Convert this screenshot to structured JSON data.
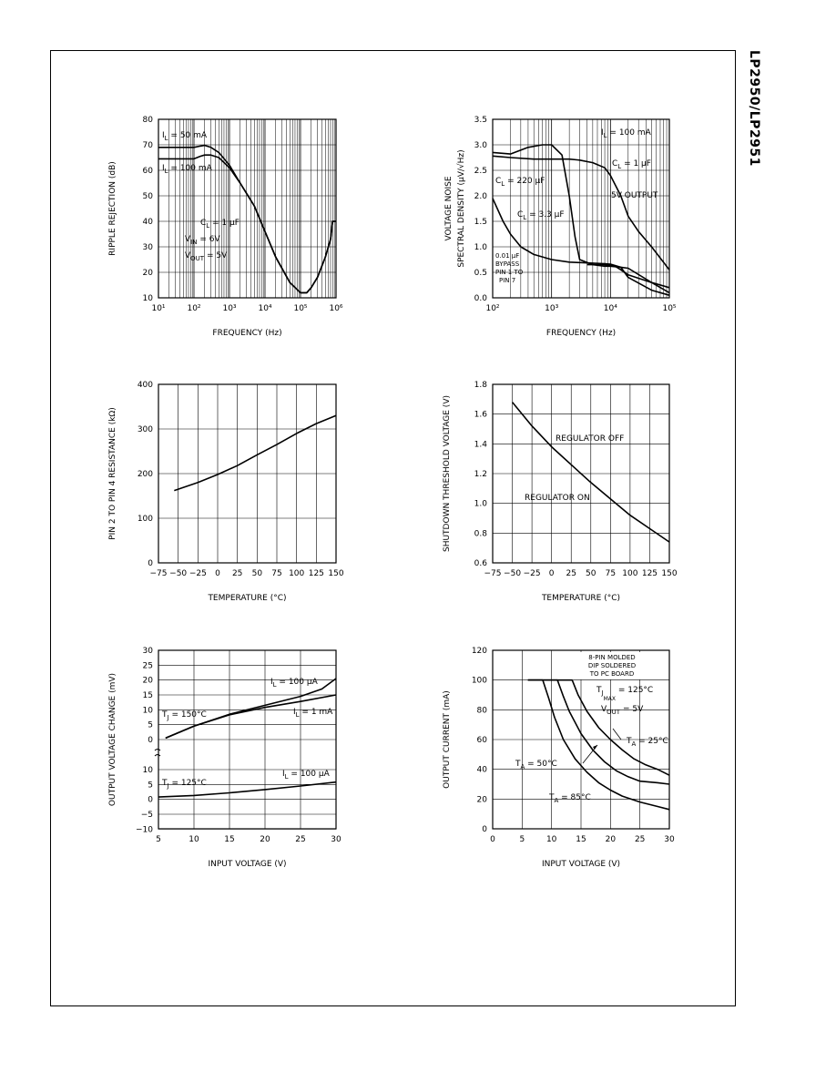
{
  "page": {
    "side_label": "LP2950/LP2951"
  },
  "chart_data": [
    {
      "id": "ripple",
      "type": "line",
      "xscale": "log",
      "xlim": [
        10,
        1000000
      ],
      "ylim": [
        10,
        80
      ],
      "xticks": [
        10,
        100,
        1000,
        10000,
        100000,
        1000000
      ],
      "xtick_labels": [
        "10¹",
        "10²",
        "10³",
        "10⁴",
        "10⁵",
        "10⁶"
      ],
      "yticks": [
        10,
        20,
        30,
        40,
        50,
        60,
        70,
        80
      ],
      "ytick_labels": [
        "10",
        "20",
        "30",
        "40",
        "50",
        "60",
        "70",
        "80"
      ],
      "grid": true,
      "xlabel": "FREQUENCY (Hz)",
      "ylabel": "RIPPLE REJECTION (dB)",
      "series": [
        {
          "name": "I_L = 50 mA",
          "x": [
            10,
            50,
            100,
            150,
            200,
            300,
            500,
            1000,
            2000,
            5000,
            10000,
            20000,
            50000,
            100000,
            150000,
            200000,
            300000,
            500000,
            700000,
            800000,
            1000000
          ],
          "y": [
            69,
            69,
            69,
            69.5,
            69.8,
            69,
            67,
            62,
            55,
            46,
            36,
            26,
            16,
            12,
            12,
            14,
            18,
            26,
            33,
            40,
            40
          ]
        },
        {
          "name": "I_L = 100 mA",
          "x": [
            10,
            50,
            100,
            150,
            200,
            300,
            500,
            1000,
            2000,
            5000,
            10000,
            20000,
            50000,
            100000,
            150000,
            200000,
            300000,
            500000,
            700000,
            800000,
            1000000
          ],
          "y": [
            64.5,
            64.5,
            64.5,
            65.5,
            66,
            66,
            65,
            61,
            55,
            46,
            36,
            26,
            16,
            12,
            12,
            14,
            18,
            26,
            33,
            40,
            40
          ]
        }
      ],
      "annotations": [
        {
          "text": "I",
          "sub": "L",
          "rest": " = 50 mA"
        },
        {
          "text": "I",
          "sub": "L",
          "rest": " = 100 mA"
        },
        {
          "text": "C",
          "sub": "L",
          "rest": " = 1 μF"
        },
        {
          "text": "V",
          "sub": "IN",
          "rest": " = 6V"
        },
        {
          "text": "V",
          "sub": "OUT",
          "rest": " = 5V"
        }
      ]
    },
    {
      "id": "noise",
      "type": "line",
      "xscale": "log",
      "xlim": [
        100,
        100000
      ],
      "ylim": [
        0,
        3.5
      ],
      "xticks": [
        100,
        1000,
        10000,
        100000
      ],
      "xtick_labels": [
        "10²",
        "10³",
        "10⁴",
        "10⁵"
      ],
      "yticks": [
        0,
        0.5,
        1.0,
        1.5,
        2.0,
        2.5,
        3.0,
        3.5
      ],
      "ytick_labels": [
        "0.0",
        "0.5",
        "1.0",
        "1.5",
        "2.0",
        "2.5",
        "3.0",
        "3.5"
      ],
      "grid": true,
      "xlabel": "FREQUENCY (Hz)",
      "ylabel": "VOLTAGE NOISE SPECTRAL DENSITY (μV/√Hz)",
      "ylabel_lines": [
        "VOLTAGE NOISE",
        "SPECTRAL DENSITY (μV/√Hz)"
      ],
      "series": [
        {
          "name": "C_L = 220 μF",
          "x": [
            100,
            200,
            400,
            700,
            1000,
            1500,
            2000,
            2500,
            3000,
            5000,
            8000,
            10000,
            15000,
            20000,
            50000,
            100000
          ],
          "y": [
            2.85,
            2.82,
            2.95,
            3.0,
            3.0,
            2.8,
            2.0,
            1.2,
            0.75,
            0.65,
            0.62,
            0.62,
            0.6,
            0.58,
            0.3,
            0.1
          ]
        },
        {
          "name": "C_L = 3.3 μF",
          "x": [
            100,
            150,
            200,
            300,
            500,
            1000,
            2000,
            5000,
            8000,
            10000,
            15000,
            20000,
            50000,
            100000
          ],
          "y": [
            1.95,
            1.5,
            1.25,
            1.0,
            0.85,
            0.75,
            0.7,
            0.68,
            0.67,
            0.66,
            0.6,
            0.4,
            0.15,
            0.05
          ]
        },
        {
          "name": "C_L = 1 μF",
          "x": [
            100,
            200,
            500,
            1000,
            2000,
            3000,
            5000,
            8000,
            10000,
            15000,
            20000,
            30000,
            50000,
            100000
          ],
          "y": [
            2.78,
            2.75,
            2.72,
            2.72,
            2.72,
            2.7,
            2.65,
            2.55,
            2.4,
            2.0,
            1.6,
            1.3,
            1.0,
            0.55
          ]
        },
        {
          "name": "0.01 μF BYPASS PIN 1 TO PIN 7",
          "x": [
            4000,
            6000,
            8000,
            10000,
            12000,
            15000,
            20000,
            50000,
            100000
          ],
          "y": [
            0.65,
            0.65,
            0.65,
            0.64,
            0.62,
            0.55,
            0.45,
            0.3,
            0.2
          ]
        }
      ],
      "annotations": [
        "I",
        "L",
        "= 100 mA",
        "C",
        "L",
        "= 1 μF",
        "5V OUTPUT",
        "C",
        "L",
        "= 220 μF",
        "C",
        "L",
        "= 3.3 μF",
        "0.01 μF",
        "BYPASS",
        "PIN 1 TO",
        "PIN 7"
      ]
    },
    {
      "id": "resistance",
      "type": "line",
      "xlim": [
        -75,
        150
      ],
      "ylim": [
        0,
        400
      ],
      "xticks": [
        -75,
        -50,
        -25,
        0,
        25,
        50,
        75,
        100,
        125,
        150
      ],
      "xtick_labels": [
        "−75",
        "−50",
        "−25",
        "0",
        "25",
        "50",
        "75",
        "100",
        "125",
        "150"
      ],
      "yticks": [
        0,
        100,
        200,
        300,
        400
      ],
      "ytick_labels": [
        "0",
        "100",
        "200",
        "300",
        "400"
      ],
      "grid": true,
      "xlabel": "TEMPERATURE (°C)",
      "ylabel": "PIN 2 TO PIN 4 RESISTANCE (kΩ)",
      "series": [
        {
          "name": "",
          "x": [
            -55,
            -25,
            0,
            25,
            50,
            75,
            100,
            125,
            150
          ],
          "y": [
            162,
            180,
            198,
            218,
            242,
            265,
            290,
            312,
            330
          ]
        }
      ]
    },
    {
      "id": "shutdown",
      "type": "line",
      "xlim": [
        -75,
        150
      ],
      "ylim": [
        0.6,
        1.8
      ],
      "xticks": [
        -75,
        -50,
        -25,
        0,
        25,
        50,
        75,
        100,
        125,
        150
      ],
      "xtick_labels": [
        "−75",
        "−50",
        "−25",
        "0",
        "25",
        "50",
        "75",
        "100",
        "125",
        "150"
      ],
      "yticks": [
        0.6,
        0.8,
        1.0,
        1.2,
        1.4,
        1.6,
        1.8
      ],
      "ytick_labels": [
        "0.6",
        "0.8",
        "1.0",
        "1.2",
        "1.4",
        "1.6",
        "1.8"
      ],
      "grid": true,
      "xlabel": "TEMPERATURE (°C)",
      "ylabel": "SHUTDOWN THRESHOLD VOLTAGE (V)",
      "series": [
        {
          "name": "",
          "x": [
            -50,
            -25,
            0,
            25,
            50,
            75,
            100,
            125,
            150
          ],
          "y": [
            1.68,
            1.52,
            1.38,
            1.26,
            1.14,
            1.03,
            0.92,
            0.83,
            0.74
          ]
        }
      ],
      "annotations": [
        "REGULATOR OFF",
        "REGULATOR ON"
      ]
    },
    {
      "id": "linereg",
      "type": "line",
      "xlim": [
        5,
        30
      ],
      "ylim": [
        -10,
        30
      ],
      "xticks": [
        5,
        10,
        15,
        20,
        25,
        30
      ],
      "xtick_labels": [
        "5",
        "10",
        "15",
        "20",
        "25",
        "30"
      ],
      "upper_yticks": [
        0,
        5,
        10,
        15,
        20,
        25,
        30
      ],
      "upper_ytick_labels": [
        "0",
        "5",
        "10",
        "15",
        "20",
        "25",
        "30"
      ],
      "lower_yticks": [
        -10,
        -5,
        0,
        5,
        10
      ],
      "lower_ytick_labels": [
        "−10",
        "−5",
        "0",
        "5",
        "10"
      ],
      "grid": true,
      "xlabel": "INPUT VOLTAGE (V)",
      "ylabel": "OUTPUT VOLTAGE CHANGE (mV)",
      "series": [
        {
          "name": "I_L = 100 μA (T_J = 150°C)",
          "panel": "upper",
          "x": [
            6,
            10,
            15,
            20,
            25,
            28,
            30
          ],
          "y": [
            0.5,
            4.5,
            8.5,
            11.5,
            14.5,
            17,
            20.5
          ]
        },
        {
          "name": "I_L = 1 mA (T_J = 150°C)",
          "panel": "upper",
          "x": [
            6,
            10,
            15,
            20,
            25,
            30
          ],
          "y": [
            0.5,
            4.5,
            8.3,
            10.8,
            12.8,
            15
          ]
        },
        {
          "name": "I_L = 100 μA (T_J = 125°C)",
          "panel": "lower",
          "x": [
            5,
            10,
            15,
            20,
            25,
            30
          ],
          "y": [
            0.8,
            1.3,
            2.2,
            3.3,
            4.5,
            5.8
          ]
        }
      ],
      "annotations": [
        "I",
        "L",
        "= 100 μA",
        "T",
        "J",
        "= 150°C",
        "I",
        "L",
        "= 1 mA",
        "I",
        "L",
        "= 100 μA",
        "T",
        "J",
        "= 125°C"
      ]
    },
    {
      "id": "outcurrent",
      "type": "line",
      "xlim": [
        0,
        30
      ],
      "ylim": [
        0,
        120
      ],
      "xticks": [
        0,
        5,
        10,
        15,
        20,
        25,
        30
      ],
      "xtick_labels": [
        "0",
        "5",
        "10",
        "15",
        "20",
        "25",
        "30"
      ],
      "yticks": [
        0,
        20,
        40,
        60,
        80,
        100,
        120
      ],
      "ytick_labels": [
        "0",
        "20",
        "40",
        "60",
        "80",
        "100",
        "120"
      ],
      "grid": true,
      "xlabel": "INPUT VOLTAGE (V)",
      "ylabel": "OUTPUT CURRENT (mA)",
      "series": [
        {
          "name": "T_A = 85°C",
          "x": [
            6,
            8.5,
            9.5,
            10.5,
            12,
            14,
            16,
            18,
            20,
            22,
            25,
            28,
            30
          ],
          "y": [
            100,
            100,
            88,
            75,
            60,
            47,
            38,
            31,
            26,
            22,
            18,
            15,
            13
          ]
        },
        {
          "name": "T_A = 50°C",
          "x": [
            6,
            11,
            12,
            13,
            15,
            17,
            19,
            21,
            23,
            25,
            28,
            30
          ],
          "y": [
            100,
            100,
            89,
            79,
            64,
            53,
            45,
            39,
            35,
            32,
            31,
            30
          ]
        },
        {
          "name": "T_A = 25°C",
          "x": [
            6,
            13.5,
            14.5,
            16,
            18,
            20,
            22,
            24,
            26,
            28,
            30
          ],
          "y": [
            100,
            100,
            90,
            79,
            68,
            60,
            53,
            47,
            43,
            40,
            36
          ]
        }
      ],
      "annotations": [
        "8-PIN MOLDED",
        "DIP SOLDERED",
        "TO PC BOARD",
        "T",
        "J",
        "MAX",
        "= 125°C",
        "V",
        "OUT",
        "= 5V",
        "T",
        "A",
        "= 25°C",
        "T",
        "A",
        "= 50°C",
        "T",
        "A",
        "= 85°C"
      ]
    }
  ]
}
